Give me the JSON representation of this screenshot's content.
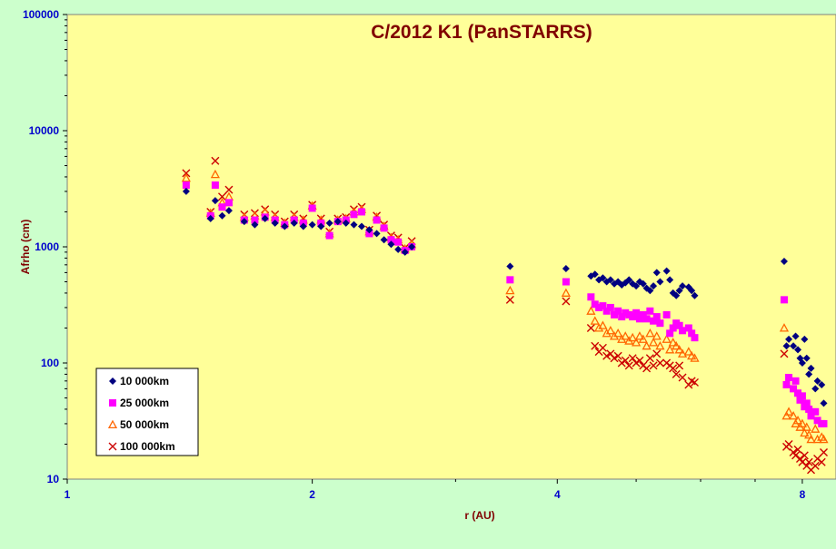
{
  "chart_data": {
    "type": "scatter",
    "title": "C/2012 K1 (PanSTARRS)",
    "xlabel": "r (AU)",
    "ylabel": "Afrho (cm)",
    "xscale": "log",
    "yscale": "log",
    "xlim": [
      1,
      8.8
    ],
    "ylim": [
      10,
      100000
    ],
    "x_ticks": [
      1,
      2,
      4,
      8
    ],
    "x_tick_labels": [
      "1",
      "2",
      "4",
      "8"
    ],
    "y_ticks": [
      10,
      100,
      1000,
      10000,
      100000
    ],
    "y_tick_labels": [
      "10",
      "100",
      "1000",
      "10000",
      "100000"
    ],
    "grid": false,
    "legend_position": "bottom-left",
    "colors": {
      "background": "#ccffcc",
      "plot_area": "#ffff99",
      "title": "#800000",
      "axis_title": "#800000",
      "tick_labels": "#0000cc"
    },
    "series": [
      {
        "name": "10 000km",
        "marker": "diamond",
        "color": "#000080",
        "points": [
          [
            1.4,
            3000
          ],
          [
            1.5,
            1750
          ],
          [
            1.52,
            2500
          ],
          [
            1.55,
            1850
          ],
          [
            1.58,
            2050
          ],
          [
            1.65,
            1650
          ],
          [
            1.7,
            1550
          ],
          [
            1.75,
            1750
          ],
          [
            1.8,
            1600
          ],
          [
            1.85,
            1500
          ],
          [
            1.9,
            1600
          ],
          [
            1.95,
            1500
          ],
          [
            2.0,
            1550
          ],
          [
            2.05,
            1500
          ],
          [
            2.1,
            1600
          ],
          [
            2.15,
            1650
          ],
          [
            2.2,
            1600
          ],
          [
            2.25,
            1550
          ],
          [
            2.3,
            1500
          ],
          [
            2.35,
            1400
          ],
          [
            2.4,
            1300
          ],
          [
            2.45,
            1150
          ],
          [
            2.5,
            1050
          ],
          [
            2.55,
            950
          ],
          [
            2.6,
            900
          ],
          [
            2.65,
            1000
          ],
          [
            3.5,
            680
          ],
          [
            4.1,
            650
          ],
          [
            4.4,
            560
          ],
          [
            4.45,
            580
          ],
          [
            4.5,
            520
          ],
          [
            4.55,
            540
          ],
          [
            4.6,
            500
          ],
          [
            4.65,
            520
          ],
          [
            4.7,
            480
          ],
          [
            4.75,
            500
          ],
          [
            4.8,
            470
          ],
          [
            4.85,
            490
          ],
          [
            4.9,
            520
          ],
          [
            4.95,
            480
          ],
          [
            5.0,
            460
          ],
          [
            5.05,
            500
          ],
          [
            5.1,
            480
          ],
          [
            5.15,
            440
          ],
          [
            5.2,
            420
          ],
          [
            5.25,
            460
          ],
          [
            5.3,
            600
          ],
          [
            5.35,
            500
          ],
          [
            5.45,
            620
          ],
          [
            5.5,
            520
          ],
          [
            5.55,
            400
          ],
          [
            5.6,
            380
          ],
          [
            5.65,
            420
          ],
          [
            5.7,
            460
          ],
          [
            5.8,
            450
          ],
          [
            5.85,
            420
          ],
          [
            5.9,
            380
          ],
          [
            7.6,
            750
          ],
          [
            7.65,
            140
          ],
          [
            7.7,
            160
          ],
          [
            7.8,
            140
          ],
          [
            7.85,
            170
          ],
          [
            7.9,
            130
          ],
          [
            7.95,
            110
          ],
          [
            8.0,
            100
          ],
          [
            8.05,
            160
          ],
          [
            8.1,
            110
          ],
          [
            8.15,
            80
          ],
          [
            8.2,
            90
          ],
          [
            8.3,
            60
          ],
          [
            8.35,
            70
          ],
          [
            8.45,
            65
          ],
          [
            8.5,
            45
          ]
        ]
      },
      {
        "name": "25 000km",
        "marker": "square",
        "color": "#ff00ff",
        "points": [
          [
            1.4,
            3400
          ],
          [
            1.5,
            1850
          ],
          [
            1.52,
            3400
          ],
          [
            1.55,
            2200
          ],
          [
            1.58,
            2400
          ],
          [
            1.65,
            1700
          ],
          [
            1.7,
            1700
          ],
          [
            1.75,
            1800
          ],
          [
            1.8,
            1700
          ],
          [
            1.85,
            1550
          ],
          [
            1.9,
            1700
          ],
          [
            1.95,
            1600
          ],
          [
            2.0,
            2150
          ],
          [
            2.05,
            1600
          ],
          [
            2.1,
            1250
          ],
          [
            2.15,
            1650
          ],
          [
            2.2,
            1700
          ],
          [
            2.25,
            1900
          ],
          [
            2.3,
            2000
          ],
          [
            2.35,
            1300
          ],
          [
            2.4,
            1700
          ],
          [
            2.45,
            1450
          ],
          [
            2.5,
            1150
          ],
          [
            2.55,
            1100
          ],
          [
            2.6,
            930
          ],
          [
            2.65,
            1000
          ],
          [
            3.5,
            520
          ],
          [
            4.1,
            500
          ],
          [
            4.4,
            370
          ],
          [
            4.45,
            320
          ],
          [
            4.5,
            300
          ],
          [
            4.55,
            310
          ],
          [
            4.6,
            280
          ],
          [
            4.65,
            300
          ],
          [
            4.7,
            260
          ],
          [
            4.75,
            280
          ],
          [
            4.8,
            250
          ],
          [
            4.85,
            270
          ],
          [
            4.9,
            260
          ],
          [
            4.95,
            250
          ],
          [
            5.0,
            270
          ],
          [
            5.05,
            240
          ],
          [
            5.1,
            260
          ],
          [
            5.15,
            240
          ],
          [
            5.2,
            280
          ],
          [
            5.25,
            230
          ],
          [
            5.3,
            250
          ],
          [
            5.35,
            220
          ],
          [
            5.45,
            260
          ],
          [
            5.5,
            180
          ],
          [
            5.55,
            200
          ],
          [
            5.6,
            220
          ],
          [
            5.65,
            210
          ],
          [
            5.7,
            190
          ],
          [
            5.8,
            200
          ],
          [
            5.85,
            180
          ],
          [
            5.9,
            165
          ],
          [
            7.6,
            350
          ],
          [
            7.65,
            65
          ],
          [
            7.7,
            75
          ],
          [
            7.8,
            60
          ],
          [
            7.85,
            70
          ],
          [
            7.9,
            55
          ],
          [
            7.95,
            48
          ],
          [
            8.0,
            52
          ],
          [
            8.05,
            42
          ],
          [
            8.1,
            45
          ],
          [
            8.15,
            40
          ],
          [
            8.2,
            35
          ],
          [
            8.3,
            38
          ],
          [
            8.35,
            32
          ],
          [
            8.45,
            30
          ],
          [
            8.5,
            30
          ]
        ]
      },
      {
        "name": "50 000km",
        "marker": "triangle",
        "color": "#ff6600",
        "points": [
          [
            1.4,
            3900
          ],
          [
            1.5,
            1950
          ],
          [
            1.52,
            4200
          ],
          [
            1.55,
            2400
          ],
          [
            1.58,
            2700
          ],
          [
            1.65,
            1800
          ],
          [
            1.7,
            1850
          ],
          [
            1.75,
            2000
          ],
          [
            1.8,
            1800
          ],
          [
            1.85,
            1600
          ],
          [
            1.9,
            1800
          ],
          [
            1.95,
            1700
          ],
          [
            2.0,
            2250
          ],
          [
            2.05,
            1700
          ],
          [
            2.1,
            1300
          ],
          [
            2.15,
            1700
          ],
          [
            2.2,
            1750
          ],
          [
            2.25,
            2000
          ],
          [
            2.3,
            2100
          ],
          [
            2.35,
            1350
          ],
          [
            2.4,
            1800
          ],
          [
            2.45,
            1500
          ],
          [
            2.5,
            1200
          ],
          [
            2.55,
            1150
          ],
          [
            2.6,
            960
          ],
          [
            2.65,
            1050
          ],
          [
            3.5,
            420
          ],
          [
            4.1,
            400
          ],
          [
            4.4,
            280
          ],
          [
            4.45,
            230
          ],
          [
            4.5,
            200
          ],
          [
            4.55,
            210
          ],
          [
            4.6,
            180
          ],
          [
            4.65,
            190
          ],
          [
            4.7,
            170
          ],
          [
            4.75,
            180
          ],
          [
            4.8,
            160
          ],
          [
            4.85,
            170
          ],
          [
            4.9,
            155
          ],
          [
            4.95,
            165
          ],
          [
            5.0,
            150
          ],
          [
            5.05,
            170
          ],
          [
            5.1,
            160
          ],
          [
            5.15,
            140
          ],
          [
            5.2,
            180
          ],
          [
            5.25,
            150
          ],
          [
            5.3,
            170
          ],
          [
            5.35,
            140
          ],
          [
            5.45,
            160
          ],
          [
            5.5,
            130
          ],
          [
            5.55,
            150
          ],
          [
            5.6,
            140
          ],
          [
            5.65,
            130
          ],
          [
            5.7,
            120
          ],
          [
            5.8,
            125
          ],
          [
            5.85,
            115
          ],
          [
            5.9,
            110
          ],
          [
            7.6,
            200
          ],
          [
            7.65,
            35
          ],
          [
            7.7,
            38
          ],
          [
            7.8,
            35
          ],
          [
            7.85,
            30
          ],
          [
            7.9,
            32
          ],
          [
            7.95,
            28
          ],
          [
            8.0,
            30
          ],
          [
            8.05,
            25
          ],
          [
            8.1,
            28
          ],
          [
            8.15,
            24
          ],
          [
            8.2,
            22
          ],
          [
            8.3,
            27
          ],
          [
            8.35,
            22
          ],
          [
            8.45,
            23
          ],
          [
            8.5,
            22
          ]
        ]
      },
      {
        "name": "100 000km",
        "marker": "cross",
        "color": "#cc0000",
        "points": [
          [
            1.4,
            4300
          ],
          [
            1.5,
            2000
          ],
          [
            1.52,
            5500
          ],
          [
            1.55,
            2700
          ],
          [
            1.58,
            3100
          ],
          [
            1.65,
            1900
          ],
          [
            1.7,
            1950
          ],
          [
            1.75,
            2100
          ],
          [
            1.8,
            1900
          ],
          [
            1.85,
            1650
          ],
          [
            1.9,
            1900
          ],
          [
            1.95,
            1750
          ],
          [
            2.0,
            2300
          ],
          [
            2.05,
            1750
          ],
          [
            2.1,
            1350
          ],
          [
            2.15,
            1750
          ],
          [
            2.2,
            1800
          ],
          [
            2.25,
            2100
          ],
          [
            2.3,
            2200
          ],
          [
            2.35,
            1400
          ],
          [
            2.4,
            1850
          ],
          [
            2.45,
            1550
          ],
          [
            2.5,
            1250
          ],
          [
            2.55,
            1200
          ],
          [
            2.6,
            980
          ],
          [
            2.65,
            1120
          ],
          [
            3.5,
            350
          ],
          [
            4.1,
            340
          ],
          [
            4.4,
            200
          ],
          [
            4.45,
            140
          ],
          [
            4.5,
            125
          ],
          [
            4.55,
            135
          ],
          [
            4.6,
            115
          ],
          [
            4.65,
            120
          ],
          [
            4.7,
            110
          ],
          [
            4.75,
            115
          ],
          [
            4.8,
            100
          ],
          [
            4.85,
            105
          ],
          [
            4.9,
            95
          ],
          [
            4.95,
            110
          ],
          [
            5.0,
            100
          ],
          [
            5.05,
            105
          ],
          [
            5.1,
            95
          ],
          [
            5.15,
            90
          ],
          [
            5.2,
            110
          ],
          [
            5.25,
            95
          ],
          [
            5.3,
            120
          ],
          [
            5.35,
            100
          ],
          [
            5.45,
            100
          ],
          [
            5.5,
            95
          ],
          [
            5.55,
            90
          ],
          [
            5.6,
            80
          ],
          [
            5.65,
            95
          ],
          [
            5.7,
            75
          ],
          [
            5.8,
            65
          ],
          [
            5.85,
            70
          ],
          [
            5.9,
            68
          ],
          [
            7.6,
            120
          ],
          [
            7.65,
            19
          ],
          [
            7.7,
            20
          ],
          [
            7.8,
            17
          ],
          [
            7.85,
            16
          ],
          [
            7.9,
            18
          ],
          [
            7.95,
            15
          ],
          [
            8.0,
            14
          ],
          [
            8.05,
            16
          ],
          [
            8.1,
            13
          ],
          [
            8.15,
            14
          ],
          [
            8.2,
            12
          ],
          [
            8.3,
            13
          ],
          [
            8.35,
            15
          ],
          [
            8.45,
            14
          ],
          [
            8.5,
            17
          ]
        ]
      }
    ]
  }
}
